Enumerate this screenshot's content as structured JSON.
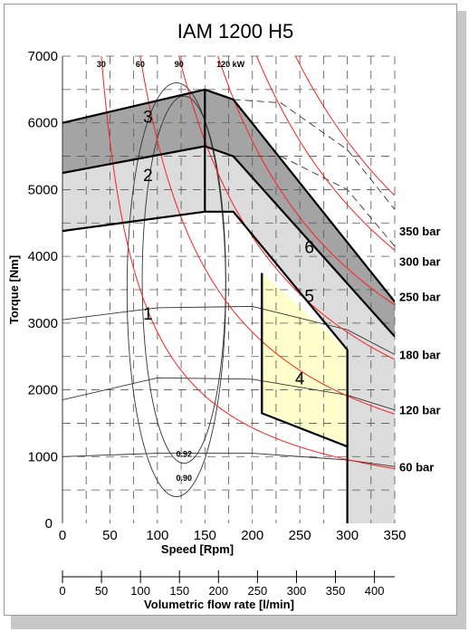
{
  "chart_data": {
    "type": "area",
    "title": "IAM 1200 H5",
    "xlabel": "Speed [Rpm]",
    "ylabel": "Torque [Nm]",
    "secondary_xlabel": "Volumetric flow rate [l/min]",
    "xlim": [
      0,
      350
    ],
    "ylim": [
      0,
      7000
    ],
    "secondary_xlim": [
      0,
      426
    ],
    "x_ticks": [
      "0",
      "50",
      "100",
      "150",
      "200",
      "250",
      "300",
      "350"
    ],
    "y_ticks": [
      "0",
      "1000",
      "2000",
      "3000",
      "4000",
      "5000",
      "6000",
      "7000"
    ],
    "secondary_x_ticks": [
      "0",
      "50",
      "100",
      "150",
      "200",
      "250",
      "300",
      "350",
      "400"
    ],
    "grid": true,
    "regions": [
      {
        "label": "1",
        "color": "#ffffff",
        "label_at": [
          90,
          3050
        ]
      },
      {
        "label": "2",
        "color": "#dcdcdc",
        "label_at": [
          90,
          5130
        ],
        "polygon": [
          [
            0,
            4380
          ],
          [
            150,
            4670
          ],
          [
            180,
            4670
          ],
          [
            300,
            2600
          ],
          [
            300,
            0
          ],
          [
            350,
            0
          ],
          [
            350,
            3000
          ],
          [
            180,
            5500
          ],
          [
            150,
            5650
          ],
          [
            0,
            5250
          ]
        ]
      },
      {
        "label": "3",
        "color": "#a4a4a4",
        "label_at": [
          90,
          6000
        ],
        "polygon": [
          [
            0,
            5250
          ],
          [
            150,
            5650
          ],
          [
            180,
            5500
          ],
          [
            350,
            3000
          ],
          [
            350,
            3000
          ],
          [
            180,
            6350
          ],
          [
            150,
            6500
          ],
          [
            0,
            6000
          ]
        ]
      },
      {
        "label": "4",
        "color": "#ffffcc",
        "label_at": [
          250,
          2080
        ],
        "polygon": [
          [
            210,
            3750
          ],
          [
            210,
            1650
          ],
          [
            300,
            1150
          ],
          [
            300,
            2600
          ],
          [
            210,
            3750
          ]
        ]
      },
      {
        "label": "5",
        "color": "#dcdcdc",
        "label_at": [
          260,
          3320
        ]
      },
      {
        "label": "6",
        "color": "#a4a4a4",
        "label_at": [
          260,
          4050
        ],
        "polygon": [
          [
            180,
            5500
          ],
          [
            350,
            2800
          ],
          [
            350,
            3320
          ],
          [
            180,
            6350
          ]
        ]
      }
    ],
    "boundaries": [
      {
        "name": "top",
        "points": [
          [
            0,
            6000
          ],
          [
            150,
            6500
          ],
          [
            180,
            6350
          ],
          [
            350,
            3320
          ]
        ],
        "width": 2.2
      },
      {
        "name": "mid",
        "points": [
          [
            0,
            5250
          ],
          [
            150,
            5650
          ],
          [
            180,
            5500
          ],
          [
            350,
            2800
          ]
        ],
        "width": 2.2
      },
      {
        "name": "low",
        "points": [
          [
            0,
            4380
          ],
          [
            150,
            4670
          ],
          [
            180,
            4670
          ],
          [
            300,
            2600
          ],
          [
            300,
            0
          ]
        ],
        "width": 2.2
      },
      {
        "name": "divider",
        "points": [
          [
            150,
            6500
          ],
          [
            150,
            4670
          ]
        ],
        "width": 2.2
      },
      {
        "name": "region-4",
        "points": [
          [
            210,
            3750
          ],
          [
            210,
            1650
          ],
          [
            300,
            1150
          ]
        ],
        "width": 2.2
      }
    ],
    "power_curves": [
      {
        "label": "30",
        "kw": 30
      },
      {
        "label": "60",
        "kw": 60
      },
      {
        "label": "90",
        "kw": 90
      },
      {
        "label": "120 kW",
        "kw": 120
      },
      {
        "label": "",
        "kw": 150
      },
      {
        "label": "",
        "kw": 180
      }
    ],
    "pressure_labels": [
      {
        "label": "350 bar",
        "y": 4380
      },
      {
        "label": "300 bar",
        "y": 3930
      },
      {
        "label": "250 bar",
        "y": 3400
      },
      {
        "label": "180 bar",
        "y": 2530
      },
      {
        "label": "120 bar",
        "y": 1700
      },
      {
        "label": "60 bar",
        "y": 850
      }
    ],
    "efficiency_labels": [
      {
        "label": "0.92",
        "at": [
          128,
          1050
        ]
      },
      {
        "label": "0.90",
        "at": [
          128,
          690
        ]
      }
    ]
  }
}
